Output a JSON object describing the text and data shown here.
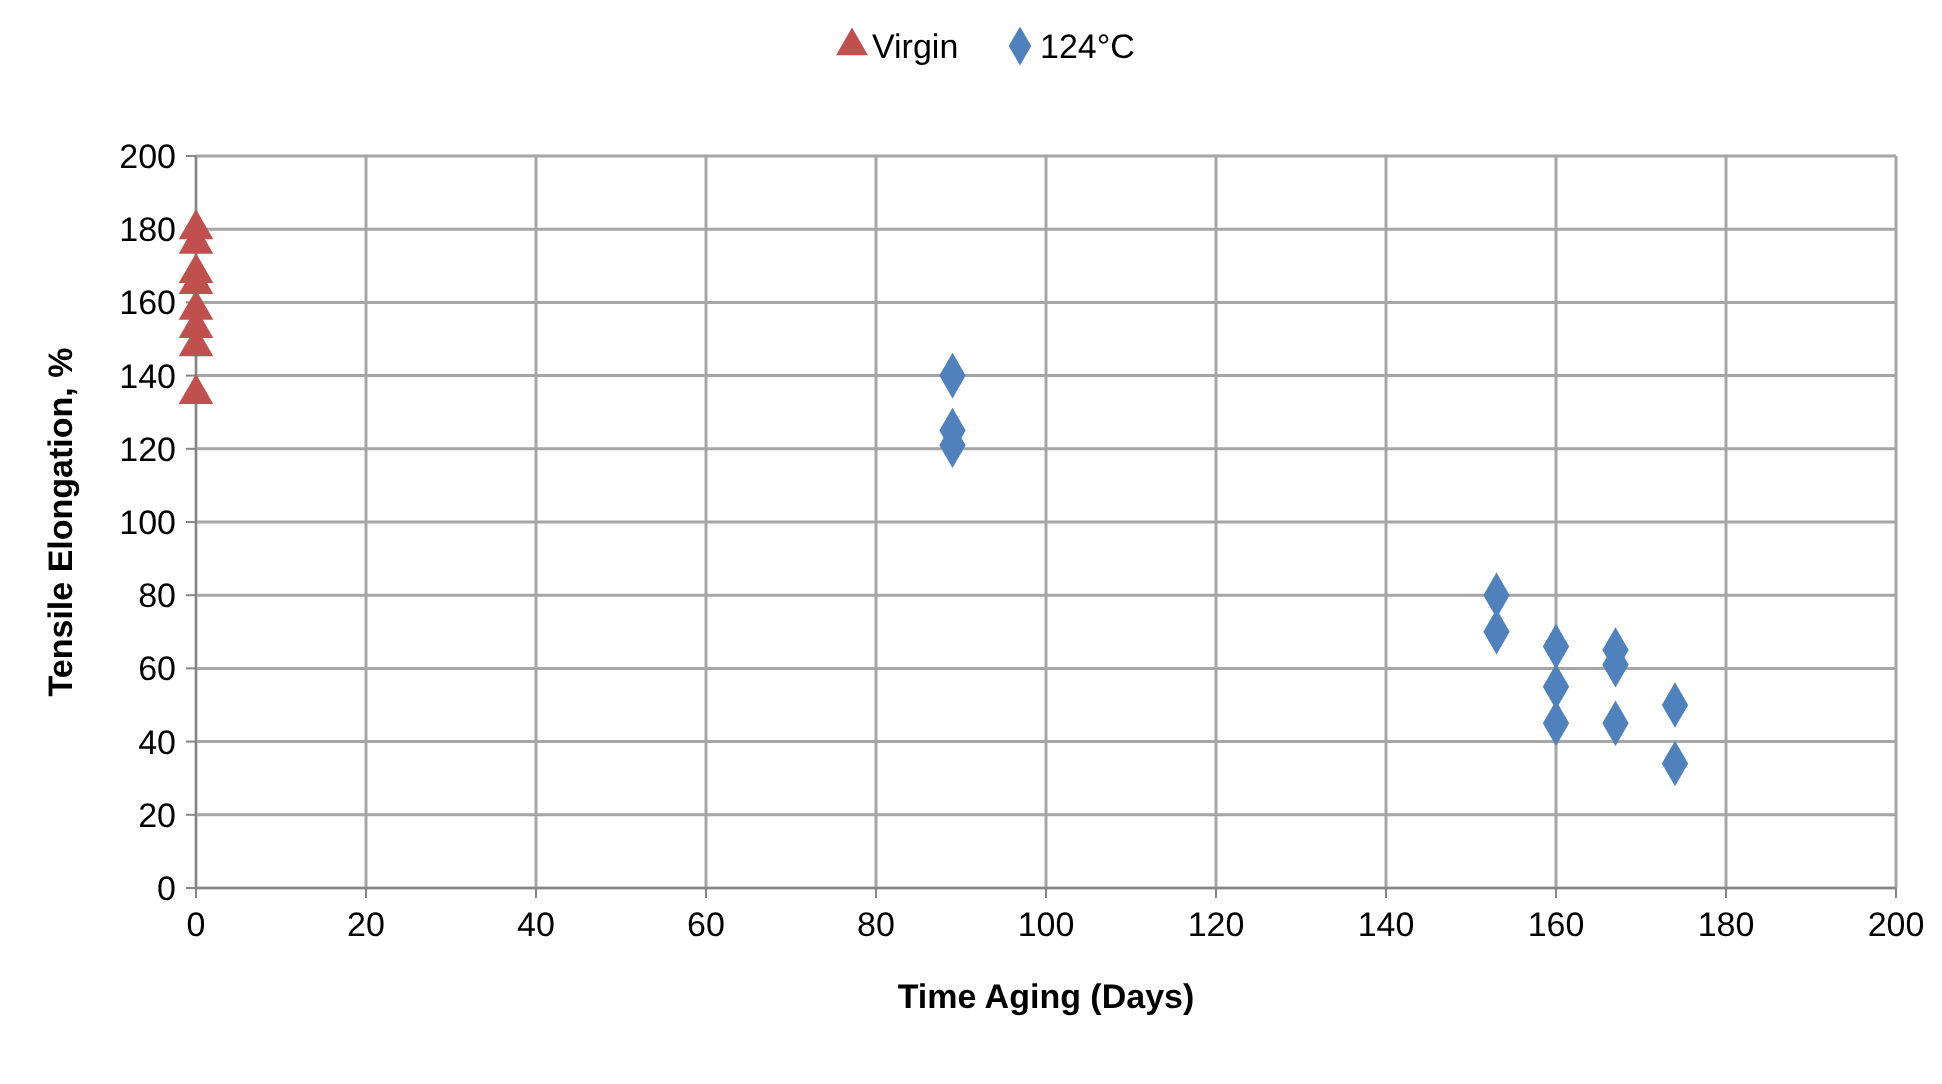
{
  "chart_data": {
    "type": "scatter",
    "xlabel": "Time Aging (Days)",
    "ylabel": "Tensile Elongation, %",
    "xlim": [
      0,
      200
    ],
    "xticks": [
      0,
      20,
      40,
      60,
      80,
      100,
      120,
      140,
      160,
      180,
      200
    ],
    "ylim": [
      0,
      200
    ],
    "yticks": [
      0,
      20,
      40,
      60,
      80,
      100,
      120,
      140,
      160,
      180,
      200
    ],
    "grid": true,
    "legend": "top",
    "series": [
      {
        "name": "Virgin",
        "color": "#c0504d",
        "marker": "triangle",
        "x": [
          0,
          0,
          0,
          0,
          0,
          0,
          0,
          0
        ],
        "values": [
          180,
          176,
          168,
          165,
          158,
          153,
          148,
          135
        ]
      },
      {
        "name": "124°C",
        "color": "#4f81bd",
        "marker": "diamond",
        "x": [
          89,
          89,
          89,
          153,
          153,
          160,
          160,
          160,
          167,
          167,
          167,
          174,
          174
        ],
        "values": [
          140,
          125,
          121,
          80,
          70,
          66,
          55,
          45,
          65,
          61,
          45,
          50,
          34
        ]
      }
    ]
  }
}
